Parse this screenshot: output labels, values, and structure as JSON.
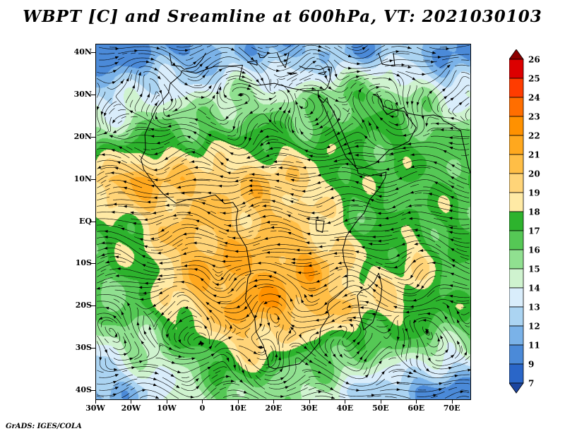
{
  "title": "WBPT [C] and Sreamline at 600hPa, VT: 2021030103",
  "attribution": "GrADS: IGES/COLA",
  "chart_data": {
    "type": "heatmap",
    "overlay": "streamlines",
    "variable": "WBPT [C]",
    "level": "600hPa",
    "valid_time": "2021030103",
    "extent": {
      "lon_min": -30,
      "lon_max": 75,
      "lat_min": -42,
      "lat_max": 42
    },
    "x_axis": {
      "ticks": [
        {
          "lon": -30,
          "label": "30W"
        },
        {
          "lon": -20,
          "label": "20W"
        },
        {
          "lon": -10,
          "label": "10W"
        },
        {
          "lon": 0,
          "label": "0"
        },
        {
          "lon": 10,
          "label": "10E"
        },
        {
          "lon": 20,
          "label": "20E"
        },
        {
          "lon": 30,
          "label": "30E"
        },
        {
          "lon": 40,
          "label": "40E"
        },
        {
          "lon": 50,
          "label": "50E"
        },
        {
          "lon": 60,
          "label": "60E"
        },
        {
          "lon": 70,
          "label": "70E"
        }
      ]
    },
    "y_axis": {
      "ticks": [
        {
          "lat": 40,
          "label": "40N"
        },
        {
          "lat": 30,
          "label": "30N"
        },
        {
          "lat": 20,
          "label": "20N"
        },
        {
          "lat": 10,
          "label": "10N"
        },
        {
          "lat": 0,
          "label": "EQ"
        },
        {
          "lat": -10,
          "label": "10S"
        },
        {
          "lat": -20,
          "label": "20S"
        },
        {
          "lat": -30,
          "label": "30S"
        },
        {
          "lat": -40,
          "label": "40S"
        }
      ]
    },
    "colorbar": {
      "boundaries": [
        26,
        25,
        24,
        23,
        22,
        21,
        20,
        19,
        18,
        17,
        16,
        15,
        14,
        13,
        12,
        11,
        9,
        7
      ],
      "above_color": "#8c0000",
      "below_color": "#1c46a0",
      "segment_colors": [
        "#dc0000",
        "#ff3c00",
        "#ff6e00",
        "#ff9100",
        "#ffa81e",
        "#ffbe46",
        "#ffd478",
        "#ffeaa5",
        "#2db32d",
        "#55c855",
        "#90e090",
        "#cff3cf",
        "#d9edfb",
        "#abd4f2",
        "#7ab2e8",
        "#4b8ad8",
        "#2a66c8"
      ]
    },
    "field_grid": {
      "lons": [
        -30,
        -22.5,
        -15,
        -7.5,
        0,
        7.5,
        15,
        22.5,
        30,
        37.5,
        45,
        52.5,
        60,
        67.5,
        75
      ],
      "lats": [
        40,
        30,
        20,
        10,
        0,
        -10,
        -20,
        -30,
        -40
      ],
      "values": [
        [
          10,
          10,
          11,
          11,
          11,
          12,
          12,
          11,
          12,
          12,
          11,
          12,
          12,
          11,
          10
        ],
        [
          13,
          13,
          14,
          14,
          14,
          15,
          15,
          15,
          15,
          16,
          17,
          16,
          15,
          14,
          14
        ],
        [
          15,
          16,
          17,
          17,
          17,
          17,
          17,
          17,
          17,
          17,
          17,
          17,
          17,
          16,
          16
        ],
        [
          20,
          21,
          21,
          20,
          20,
          20,
          20,
          20,
          19,
          18,
          17,
          17,
          17,
          17,
          17
        ],
        [
          17,
          18,
          19,
          20,
          20,
          20,
          20,
          20,
          19,
          18,
          17,
          17,
          17,
          17,
          17
        ],
        [
          17,
          17,
          18,
          20,
          21,
          21,
          21,
          21,
          21,
          20,
          18,
          18,
          19,
          17,
          17
        ],
        [
          16,
          16,
          17,
          19,
          20,
          21,
          22,
          21,
          21,
          20,
          19,
          19,
          18,
          17,
          17
        ],
        [
          14,
          15,
          15,
          16,
          17,
          19,
          19,
          18,
          17,
          17,
          16,
          16,
          16,
          15,
          15
        ],
        [
          11,
          12,
          13,
          14,
          15,
          16,
          16,
          15,
          15,
          14,
          13,
          12,
          11,
          10,
          10
        ]
      ]
    },
    "streamline_features": [
      {
        "lon": -17,
        "lat": 21,
        "strength": 5,
        "radius": 5
      },
      {
        "lon": 5,
        "lat": 17,
        "strength": 4,
        "radius": 4
      },
      {
        "lon": 13,
        "lat": 11,
        "strength": 3.5,
        "radius": 3.5
      },
      {
        "lon": 4,
        "lat": -15,
        "strength": -6,
        "radius": 5
      },
      {
        "lon": 26,
        "lat": -21,
        "strength": -5,
        "radius": 4
      },
      {
        "lon": 25,
        "lat": -32,
        "strength": -6,
        "radius": 4
      },
      {
        "lon": 58,
        "lat": 4,
        "strength": 7,
        "radius": 7
      },
      {
        "lon": 59,
        "lat": -16,
        "strength": -6,
        "radius": 5
      },
      {
        "lon": 38,
        "lat": 33,
        "strength": 4,
        "radius": 4
      },
      {
        "lon": 67,
        "lat": 26,
        "strength": -4,
        "radius": 4
      }
    ],
    "coastlines": [
      [
        [
          -5.9,
          35.8
        ],
        [
          -2,
          35.2
        ],
        [
          3.2,
          36.8
        ],
        [
          8,
          36.9
        ],
        [
          11.1,
          37.1
        ],
        [
          10.2,
          33.7
        ],
        [
          15.2,
          32.3
        ],
        [
          20,
          32.8
        ],
        [
          25,
          31.6
        ],
        [
          29,
          31
        ],
        [
          32.3,
          31.1
        ],
        [
          32.3,
          29.6
        ],
        [
          33.9,
          27.3
        ],
        [
          35.6,
          23.9
        ],
        [
          37.2,
          20.7
        ],
        [
          38.6,
          18.1
        ],
        [
          40.1,
          15.4
        ],
        [
          43.3,
          12.5
        ],
        [
          43.5,
          11.5
        ],
        [
          46.2,
          10.8
        ],
        [
          49.1,
          11.3
        ],
        [
          51.4,
          11.8
        ],
        [
          51.1,
          10.4
        ],
        [
          49.4,
          7.9
        ],
        [
          46.8,
          5.3
        ],
        [
          45.2,
          2.1
        ],
        [
          42.9,
          -0.1
        ],
        [
          41.6,
          -1.7
        ],
        [
          40.2,
          -3.4
        ],
        [
          39.2,
          -6.6
        ],
        [
          39.6,
          -9.4
        ],
        [
          40.5,
          -11.2
        ],
        [
          40.5,
          -15.3
        ],
        [
          38,
          -17.3
        ],
        [
          35.2,
          -19.2
        ],
        [
          34.8,
          -20.6
        ],
        [
          35.4,
          -22.2
        ],
        [
          33,
          -25.3
        ],
        [
          32.6,
          -28.6
        ],
        [
          30.1,
          -31.2
        ],
        [
          27,
          -33.6
        ],
        [
          22.1,
          -34.4
        ],
        [
          20,
          -34.8
        ],
        [
          18.4,
          -34.2
        ],
        [
          18.2,
          -32.6
        ],
        [
          16.9,
          -29.2
        ],
        [
          14.9,
          -26
        ],
        [
          14.5,
          -22.8
        ],
        [
          11.9,
          -18.4
        ],
        [
          12.6,
          -13.3
        ],
        [
          13.4,
          -12.2
        ],
        [
          12.2,
          -6.1
        ],
        [
          9.6,
          -2.4
        ],
        [
          9.3,
          0.5
        ],
        [
          9.8,
          2.9
        ],
        [
          8.4,
          4.6
        ],
        [
          6.1,
          4.3
        ],
        [
          3.4,
          6.4
        ],
        [
          -0.6,
          5.6
        ],
        [
          -4.4,
          5.3
        ],
        [
          -7.6,
          4.4
        ],
        [
          -11.1,
          6.6
        ],
        [
          -13.3,
          8.6
        ],
        [
          -16.6,
          12.4
        ],
        [
          -17.4,
          14.8
        ],
        [
          -16.1,
          17.1
        ],
        [
          -16.3,
          20.7
        ],
        [
          -14.5,
          24.2
        ],
        [
          -12.9,
          27.1
        ],
        [
          -9.7,
          30.5
        ],
        [
          -9.2,
          32.7
        ],
        [
          -6.3,
          34.8
        ],
        [
          -5.9,
          35.8
        ]
      ],
      [
        [
          49.3,
          -12.1
        ],
        [
          50.2,
          -15.4
        ],
        [
          49.8,
          -18.5
        ],
        [
          47.6,
          -23.8
        ],
        [
          45.1,
          -25.6
        ],
        [
          43.9,
          -21.4
        ],
        [
          43.3,
          -17.4
        ],
        [
          44.5,
          -16.2
        ],
        [
          46.3,
          -15.8
        ],
        [
          48,
          -14.3
        ],
        [
          49.3,
          -12.1
        ]
      ],
      [
        [
          32.3,
          29.6
        ],
        [
          33.7,
          28.2
        ],
        [
          34.8,
          29.4
        ],
        [
          35.1,
          28.1
        ],
        [
          36.8,
          25.8
        ],
        [
          39.1,
          21.3
        ],
        [
          41.4,
          16.7
        ],
        [
          43,
          12.7
        ],
        [
          45.1,
          12.8
        ],
        [
          48.6,
          14
        ],
        [
          52.2,
          17
        ],
        [
          55.1,
          17.9
        ],
        [
          57.8,
          19.1
        ],
        [
          59.8,
          22.3
        ],
        [
          58.6,
          23.6
        ],
        [
          56.4,
          26.2
        ],
        [
          54.1,
          26.4
        ],
        [
          51.6,
          25.4
        ],
        [
          50.7,
          26.5
        ],
        [
          50,
          29
        ],
        [
          48.6,
          29.9
        ],
        [
          47.7,
          30.1
        ],
        [
          48.9,
          30.3
        ],
        [
          50.6,
          27.4
        ],
        [
          52.7,
          26.6
        ],
        [
          54.9,
          26.6
        ],
        [
          56.3,
          27.1
        ],
        [
          57.3,
          25.8
        ],
        [
          59.1,
          25.4
        ],
        [
          61.7,
          25.1
        ],
        [
          64.7,
          25.3
        ],
        [
          66.7,
          24.8
        ],
        [
          67.5,
          23.9
        ],
        [
          68.6,
          23.5
        ],
        [
          70,
          22.8
        ],
        [
          72.3,
          21.6
        ],
        [
          72.7,
          19.9
        ],
        [
          73.5,
          16.9
        ],
        [
          74.3,
          13.5
        ],
        [
          75,
          11.5
        ]
      ],
      [
        [
          -9.4,
          40
        ],
        [
          -8.8,
          37.1
        ],
        [
          -6.3,
          36.8
        ],
        [
          -5.3,
          36.1
        ],
        [
          -2,
          36.8
        ],
        [
          -0.3,
          38.4
        ],
        [
          0.8,
          40
        ]
      ],
      [
        [
          12.4,
          37.8
        ],
        [
          15.1,
          38.2
        ],
        [
          15.2,
          37.1
        ],
        [
          12.4,
          37.8
        ]
      ],
      [
        [
          15.6,
          40
        ],
        [
          16,
          38.9
        ],
        [
          17.1,
          38.9
        ],
        [
          18.4,
          40
        ]
      ],
      [
        [
          20.8,
          40
        ],
        [
          21.7,
          38.2
        ],
        [
          23.1,
          36.5
        ],
        [
          23.5,
          38
        ],
        [
          24.1,
          40
        ]
      ],
      [
        [
          23.6,
          35.3
        ],
        [
          26.3,
          35.2
        ],
        [
          24.8,
          34.9
        ],
        [
          23.6,
          35.3
        ]
      ],
      [
        [
          27,
          36.9
        ],
        [
          29,
          36.2
        ],
        [
          30.6,
          36.3
        ],
        [
          32.8,
          36
        ],
        [
          34.6,
          36.7
        ],
        [
          36.1,
          36.6
        ],
        [
          35.9,
          35.5
        ],
        [
          35.5,
          33.3
        ],
        [
          34.9,
          31.9
        ],
        [
          34.2,
          31.3
        ],
        [
          32.3,
          31.1
        ]
      ],
      [
        [
          32.3,
          35.1
        ],
        [
          34.6,
          35.6
        ],
        [
          33.9,
          34.9
        ],
        [
          32.3,
          35.1
        ]
      ],
      [
        [
          49.2,
          40
        ],
        [
          50.3,
          37.3
        ],
        [
          53.8,
          36.9
        ],
        [
          53.4,
          40
        ]
      ],
      [
        [
          31.7,
          0.4
        ],
        [
          34,
          0.2
        ],
        [
          33.5,
          -2.5
        ],
        [
          31.8,
          -1.9
        ],
        [
          31.7,
          0.4
        ]
      ]
    ]
  }
}
